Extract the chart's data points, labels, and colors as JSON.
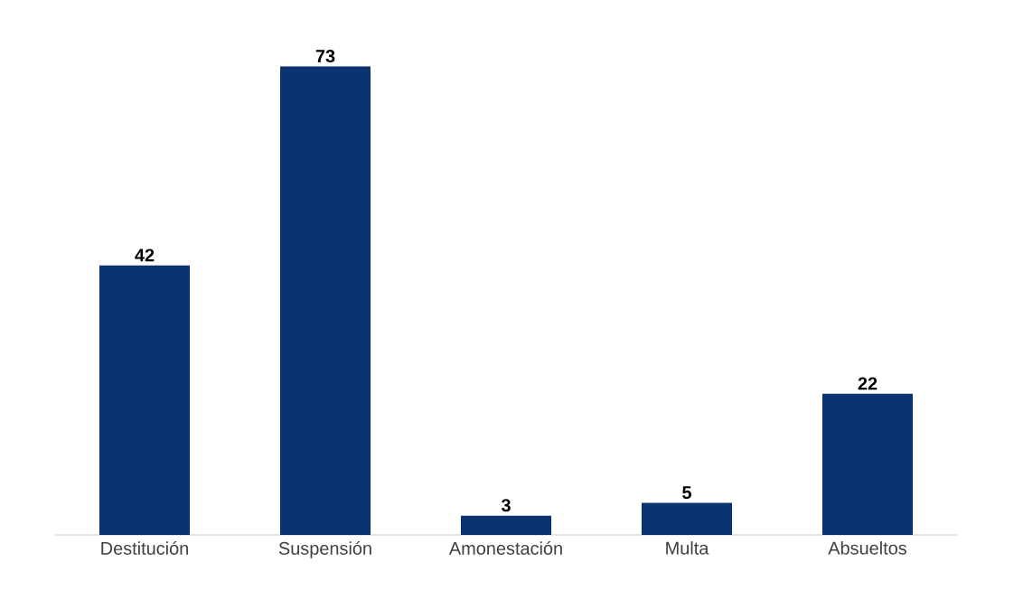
{
  "chart_data": {
    "type": "bar",
    "categories": [
      "Destitución",
      "Suspensión",
      "Amonestación",
      "Multa",
      "Absueltos"
    ],
    "values": [
      42,
      73,
      3,
      5,
      22
    ],
    "color": "#0a3370",
    "data_labels": true,
    "tick_labels": "x"
  }
}
